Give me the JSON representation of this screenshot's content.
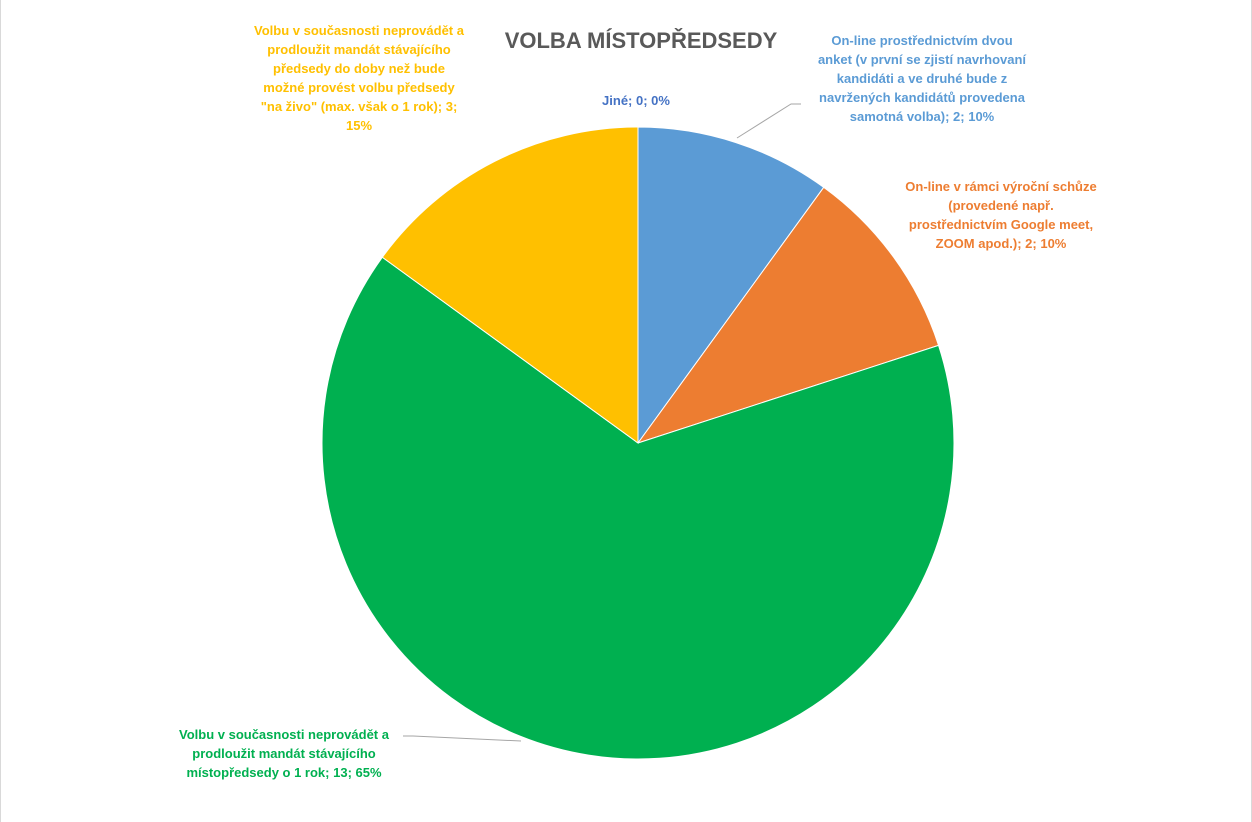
{
  "chart_data": {
    "type": "pie",
    "title": "VOLBA MÍSTOPŘEDSEDY",
    "start_angle_deg": 0,
    "direction": "clockwise",
    "slices": [
      {
        "label": "Jiné",
        "value": 0,
        "percent": "0%",
        "color": "#4472c4",
        "label_color": "#4472c4",
        "data_label": "Jiné; 0; 0%"
      },
      {
        "label": "On-line prostřednictvím dvou anket (v první se zjistí navrhovaní kandidáti a ve druhé bude z navržených kandidátů provedena samotná volba)",
        "value": 2,
        "percent": "10%",
        "color": "#5b9bd5",
        "label_color": "#5b9bd5",
        "data_label": "On-line prostřednictvím dvou\nanket (v první se zjistí navrhovaní\nkandidáti a ve druhé bude z\nnavržených kandidátů provedena\nsamotná volba);  2; 10%"
      },
      {
        "label": "On-line v rámci výroční schůze (provedené např. prostřednictvím Google meet, ZOOM apod.)",
        "value": 2,
        "percent": "10%",
        "color": "#ed7d31",
        "label_color": "#ed7d31",
        "data_label": "On-line v rámci výroční schůze\n(provedené např.\nprostřednictvím Google meet,\nZOOM apod.);  2; 10%"
      },
      {
        "label": "Volbu v současnosti neprovádět a prodloužit mandát stávajícího místopředsedy o 1 rok",
        "value": 13,
        "percent": "65%",
        "color": "#00b050",
        "label_color": "#00b050",
        "data_label": "Volbu v současnosti  neprovádět a\nprodloužit mandát stávajícího\nmístopředsedy o 1 rok; 13; 65%"
      },
      {
        "label": "Volbu v současnosti neprovádět a prodloužit mandát stávajícího předsedy do doby než bude možné provést volbu předsedy \"na živo\" (max. však o 1 rok)",
        "value": 3,
        "percent": "15%",
        "color": "#ffc000",
        "label_color": "#ffc000",
        "data_label": "Volbu v současnosti  neprovádět a\nprodloužit mandát stávajícího\npředsedy do doby než bude\nmožné provést volbu předsedy\n\"na živo\" (max. však o 1 rok); 3;\n15%"
      }
    ],
    "legend": "none",
    "leader_lines": true
  }
}
